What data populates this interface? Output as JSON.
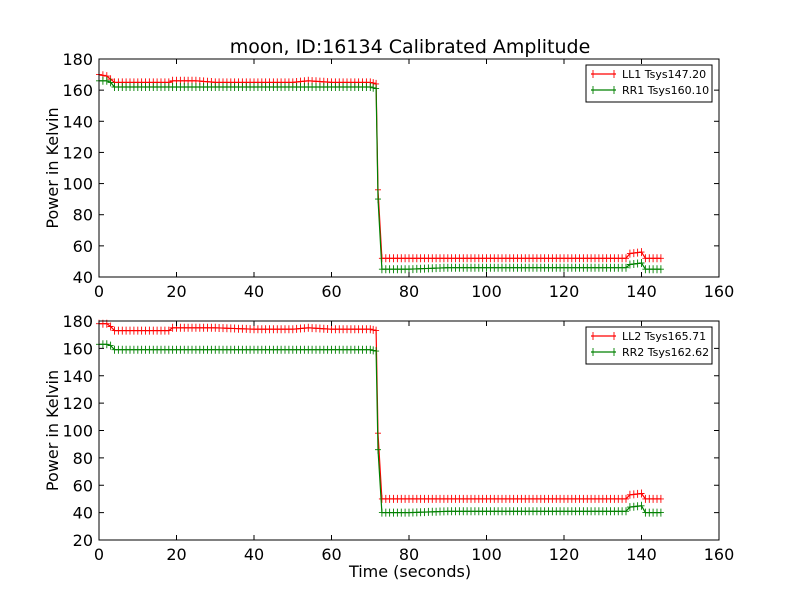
{
  "chart_data": [
    {
      "type": "line",
      "title": "moon, ID:16134 Calibrated Amplitude",
      "xlabel": "",
      "ylabel": "Power in Kelvin",
      "xlim": [
        0,
        160
      ],
      "ylim": [
        40,
        180
      ],
      "xticks": [
        0,
        20,
        40,
        60,
        80,
        100,
        120,
        140,
        160
      ],
      "yticks": [
        40,
        60,
        80,
        100,
        120,
        140,
        160,
        180
      ],
      "grid": false,
      "legend": "top-right",
      "series": [
        {
          "name": "LL1 Tsys147.20",
          "color": "#ff0000",
          "marker": "+",
          "points": [
            [
              0,
              170
            ],
            [
              2,
              169
            ],
            [
              3,
              167
            ],
            [
              4,
              165
            ],
            [
              10,
              165
            ],
            [
              18,
              165
            ],
            [
              19,
              166
            ],
            [
              25,
              166
            ],
            [
              30,
              165
            ],
            [
              40,
              165
            ],
            [
              50,
              165
            ],
            [
              54,
              166
            ],
            [
              60,
              165
            ],
            [
              70,
              165
            ],
            [
              71.5,
              164
            ],
            [
              72,
              96
            ],
            [
              73,
              52
            ],
            [
              80,
              52
            ],
            [
              100,
              52
            ],
            [
              120,
              52
            ],
            [
              136,
              52
            ],
            [
              137,
              55
            ],
            [
              140,
              56
            ],
            [
              141,
              52
            ],
            [
              145,
              52
            ]
          ]
        },
        {
          "name": "RR1 Tsys160.10",
          "color": "#008000",
          "marker": "+",
          "points": [
            [
              0,
              166
            ],
            [
              2,
              166
            ],
            [
              3,
              165
            ],
            [
              4,
              162
            ],
            [
              10,
              162
            ],
            [
              20,
              162
            ],
            [
              40,
              162
            ],
            [
              60,
              162
            ],
            [
              70,
              162
            ],
            [
              71.5,
              161
            ],
            [
              72,
              90
            ],
            [
              73,
              45
            ],
            [
              80,
              45
            ],
            [
              90,
              46
            ],
            [
              100,
              46
            ],
            [
              120,
              46
            ],
            [
              136,
              46
            ],
            [
              137,
              48
            ],
            [
              140,
              49
            ],
            [
              141,
              45
            ],
            [
              145,
              45
            ]
          ]
        }
      ]
    },
    {
      "type": "line",
      "title": "",
      "xlabel": "Time (seconds)",
      "ylabel": "Power in Kelvin",
      "xlim": [
        0,
        160
      ],
      "ylim": [
        20,
        180
      ],
      "xticks": [
        0,
        20,
        40,
        60,
        80,
        100,
        120,
        140,
        160
      ],
      "yticks": [
        20,
        40,
        60,
        80,
        100,
        120,
        140,
        160,
        180
      ],
      "grid": false,
      "legend": "top-right",
      "series": [
        {
          "name": "LL2 Tsys165.71",
          "color": "#ff0000",
          "marker": "+",
          "points": [
            [
              0,
              178
            ],
            [
              2,
              178
            ],
            [
              3,
              176
            ],
            [
              4,
              173
            ],
            [
              10,
              173
            ],
            [
              18,
              173
            ],
            [
              19,
              175
            ],
            [
              30,
              175
            ],
            [
              40,
              174
            ],
            [
              50,
              174
            ],
            [
              54,
              175
            ],
            [
              60,
              174
            ],
            [
              70,
              174
            ],
            [
              71.5,
              173
            ],
            [
              72,
              98
            ],
            [
              73,
              50
            ],
            [
              80,
              50
            ],
            [
              100,
              50
            ],
            [
              120,
              50
            ],
            [
              136,
              50
            ],
            [
              137,
              53
            ],
            [
              140,
              54
            ],
            [
              141,
              50
            ],
            [
              145,
              50
            ]
          ]
        },
        {
          "name": "RR2 Tsys162.62",
          "color": "#008000",
          "marker": "+",
          "points": [
            [
              0,
              163
            ],
            [
              2,
              163
            ],
            [
              3,
              162
            ],
            [
              4,
              159
            ],
            [
              10,
              159
            ],
            [
              20,
              159
            ],
            [
              40,
              159
            ],
            [
              60,
              159
            ],
            [
              70,
              159
            ],
            [
              71.5,
              158
            ],
            [
              72,
              86
            ],
            [
              73,
              40
            ],
            [
              80,
              40
            ],
            [
              90,
              41
            ],
            [
              100,
              41
            ],
            [
              120,
              41
            ],
            [
              136,
              41
            ],
            [
              137,
              44
            ],
            [
              140,
              45
            ],
            [
              141,
              40
            ],
            [
              145,
              40
            ]
          ]
        }
      ]
    }
  ]
}
